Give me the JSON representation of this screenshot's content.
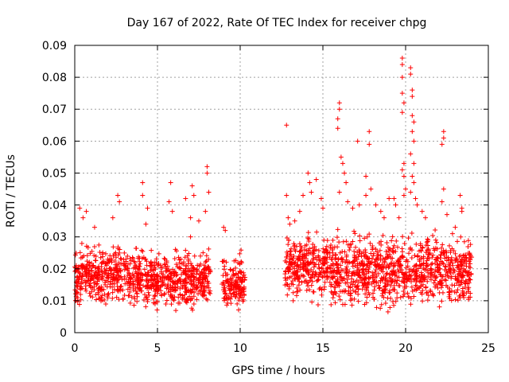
{
  "chart_data": {
    "type": "scatter",
    "title": "Day 167 of 2022, Rate Of TEC Index for receiver chpg",
    "xlabel": "GPS time / hours",
    "ylabel": "ROTI / TECUs",
    "xlim": [
      0,
      25
    ],
    "ylim": [
      0,
      0.09
    ],
    "xticks": [
      0,
      5,
      10,
      15,
      20,
      25
    ],
    "xtick_labels": [
      "0",
      "5",
      "10",
      "15",
      "20",
      "25"
    ],
    "yticks": [
      0,
      0.01,
      0.02,
      0.03,
      0.04,
      0.05,
      0.06,
      0.07,
      0.08,
      0.09
    ],
    "ytick_labels": [
      "0",
      "0.01",
      "0.02",
      "0.03",
      "0.04",
      "0.05",
      "0.06",
      "0.07",
      "0.08",
      "0.09"
    ],
    "grid": true,
    "marker": "+",
    "marker_color": "#ff0000",
    "segments": [
      {
        "start": 0.0,
        "end": 4.0,
        "low": 0.006,
        "high": 0.027
      },
      {
        "start": 4.0,
        "end": 8.2,
        "low": 0.006,
        "high": 0.025
      },
      {
        "start": 8.9,
        "end": 10.3,
        "low": 0.005,
        "high": 0.024
      },
      {
        "start": 12.7,
        "end": 15.3,
        "low": 0.007,
        "high": 0.03
      },
      {
        "start": 15.4,
        "end": 24.0,
        "low": 0.005,
        "high": 0.03
      }
    ],
    "outliers": [
      {
        "x": 0.3,
        "y": 0.039
      },
      {
        "x": 0.5,
        "y": 0.036
      },
      {
        "x": 0.7,
        "y": 0.038
      },
      {
        "x": 1.2,
        "y": 0.033
      },
      {
        "x": 2.3,
        "y": 0.036
      },
      {
        "x": 2.6,
        "y": 0.043
      },
      {
        "x": 2.7,
        "y": 0.041
      },
      {
        "x": 4.1,
        "y": 0.047
      },
      {
        "x": 4.1,
        "y": 0.043
      },
      {
        "x": 4.3,
        "y": 0.034
      },
      {
        "x": 4.4,
        "y": 0.039
      },
      {
        "x": 5.8,
        "y": 0.047
      },
      {
        "x": 5.7,
        "y": 0.041
      },
      {
        "x": 5.9,
        "y": 0.038
      },
      {
        "x": 6.7,
        "y": 0.042
      },
      {
        "x": 7.0,
        "y": 0.036
      },
      {
        "x": 7.0,
        "y": 0.03
      },
      {
        "x": 7.1,
        "y": 0.046
      },
      {
        "x": 7.2,
        "y": 0.043
      },
      {
        "x": 7.5,
        "y": 0.035
      },
      {
        "x": 7.9,
        "y": 0.038
      },
      {
        "x": 8.0,
        "y": 0.052
      },
      {
        "x": 8.0,
        "y": 0.05
      },
      {
        "x": 8.1,
        "y": 0.044
      },
      {
        "x": 9.0,
        "y": 0.033
      },
      {
        "x": 9.1,
        "y": 0.032
      },
      {
        "x": 12.8,
        "y": 0.065
      },
      {
        "x": 12.8,
        "y": 0.043
      },
      {
        "x": 12.9,
        "y": 0.036
      },
      {
        "x": 13.0,
        "y": 0.034
      },
      {
        "x": 13.3,
        "y": 0.035
      },
      {
        "x": 13.6,
        "y": 0.038
      },
      {
        "x": 13.8,
        "y": 0.043
      },
      {
        "x": 14.1,
        "y": 0.05
      },
      {
        "x": 14.2,
        "y": 0.047
      },
      {
        "x": 14.3,
        "y": 0.044
      },
      {
        "x": 14.6,
        "y": 0.048
      },
      {
        "x": 14.9,
        "y": 0.042
      },
      {
        "x": 15.0,
        "y": 0.039
      },
      {
        "x": 16.0,
        "y": 0.072
      },
      {
        "x": 16.0,
        "y": 0.07
      },
      {
        "x": 15.9,
        "y": 0.067
      },
      {
        "x": 15.9,
        "y": 0.064
      },
      {
        "x": 16.1,
        "y": 0.055
      },
      {
        "x": 16.2,
        "y": 0.053
      },
      {
        "x": 16.3,
        "y": 0.05
      },
      {
        "x": 16.4,
        "y": 0.047
      },
      {
        "x": 16.0,
        "y": 0.044
      },
      {
        "x": 16.5,
        "y": 0.041
      },
      {
        "x": 16.8,
        "y": 0.039
      },
      {
        "x": 17.1,
        "y": 0.06
      },
      {
        "x": 17.2,
        "y": 0.04
      },
      {
        "x": 17.6,
        "y": 0.049
      },
      {
        "x": 17.6,
        "y": 0.043
      },
      {
        "x": 17.8,
        "y": 0.063
      },
      {
        "x": 17.8,
        "y": 0.059
      },
      {
        "x": 17.9,
        "y": 0.045
      },
      {
        "x": 18.2,
        "y": 0.04
      },
      {
        "x": 18.5,
        "y": 0.038
      },
      {
        "x": 18.7,
        "y": 0.036
      },
      {
        "x": 19.0,
        "y": 0.042
      },
      {
        "x": 19.3,
        "y": 0.042
      },
      {
        "x": 19.4,
        "y": 0.04
      },
      {
        "x": 19.6,
        "y": 0.036
      },
      {
        "x": 19.8,
        "y": 0.086
      },
      {
        "x": 19.8,
        "y": 0.084
      },
      {
        "x": 19.8,
        "y": 0.08
      },
      {
        "x": 19.8,
        "y": 0.075
      },
      {
        "x": 19.9,
        "y": 0.072
      },
      {
        "x": 19.8,
        "y": 0.069
      },
      {
        "x": 19.9,
        "y": 0.053
      },
      {
        "x": 19.8,
        "y": 0.051
      },
      {
        "x": 19.9,
        "y": 0.049
      },
      {
        "x": 20.0,
        "y": 0.045
      },
      {
        "x": 19.9,
        "y": 0.043
      },
      {
        "x": 20.3,
        "y": 0.083
      },
      {
        "x": 20.3,
        "y": 0.081
      },
      {
        "x": 20.4,
        "y": 0.076
      },
      {
        "x": 20.4,
        "y": 0.074
      },
      {
        "x": 20.4,
        "y": 0.068
      },
      {
        "x": 20.5,
        "y": 0.066
      },
      {
        "x": 20.4,
        "y": 0.063
      },
      {
        "x": 20.5,
        "y": 0.06
      },
      {
        "x": 20.3,
        "y": 0.056
      },
      {
        "x": 20.5,
        "y": 0.053
      },
      {
        "x": 20.4,
        "y": 0.049
      },
      {
        "x": 20.5,
        "y": 0.047
      },
      {
        "x": 20.3,
        "y": 0.044
      },
      {
        "x": 20.6,
        "y": 0.042
      },
      {
        "x": 20.7,
        "y": 0.04
      },
      {
        "x": 21.0,
        "y": 0.038
      },
      {
        "x": 21.2,
        "y": 0.036
      },
      {
        "x": 22.3,
        "y": 0.063
      },
      {
        "x": 22.3,
        "y": 0.061
      },
      {
        "x": 22.2,
        "y": 0.059
      },
      {
        "x": 22.3,
        "y": 0.045
      },
      {
        "x": 22.2,
        "y": 0.041
      },
      {
        "x": 22.5,
        "y": 0.037
      },
      {
        "x": 23.3,
        "y": 0.043
      },
      {
        "x": 23.4,
        "y": 0.039
      },
      {
        "x": 23.4,
        "y": 0.038
      },
      {
        "x": 23.0,
        "y": 0.033
      }
    ]
  }
}
